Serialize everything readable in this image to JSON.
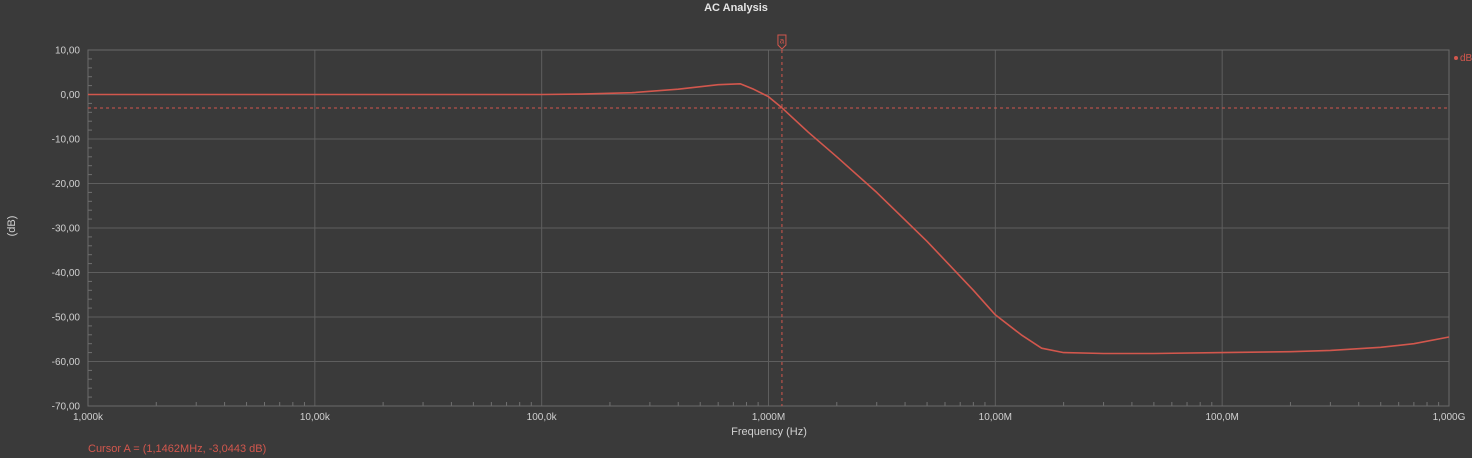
{
  "chart_data": {
    "type": "line",
    "title": "AC Analysis",
    "xlabel": "Frequency (Hz)",
    "ylabel": "(dB)",
    "xscale": "log",
    "xlim": [
      1000,
      1000000000
    ],
    "ylim": [
      -70,
      10
    ],
    "grid": true,
    "x_tick_labels": [
      "1,000k",
      "10,00k",
      "100,0k",
      "1,000M",
      "10,00M",
      "100,0M",
      "1,000G"
    ],
    "y_tick_labels": [
      "10,00",
      "0,00",
      "-10,00",
      "-20,00",
      "-30,00",
      "-40,00",
      "-50,00",
      "-60,00",
      "-70,00"
    ],
    "y_ticks": [
      10,
      0,
      -10,
      -20,
      -30,
      -40,
      -50,
      -60,
      -70
    ],
    "series": [
      {
        "name": "dB",
        "color": "#d2574d",
        "x": [
          1000,
          10000,
          100000,
          150000,
          250000,
          400000,
          600000,
          750000,
          850000,
          1000000,
          1146200,
          1500000,
          2000000,
          3000000,
          5000000,
          8000000,
          10000000,
          13000000,
          16000000,
          20000000,
          30000000,
          50000000,
          100000000,
          200000000,
          300000000,
          500000000,
          700000000,
          1000000000
        ],
        "y": [
          0,
          0,
          0,
          0.1,
          0.4,
          1.2,
          2.2,
          2.4,
          1.3,
          -0.5,
          -3.0,
          -8.5,
          -14,
          -22,
          -33,
          -44,
          -49.5,
          -54,
          -57,
          -58,
          -58.2,
          -58.2,
          -58,
          -57.8,
          -57.5,
          -56.8,
          -56,
          -54.5
        ]
      }
    ],
    "cursor": {
      "label": "a",
      "x": 1146200,
      "y": -3.0443,
      "readout": "Cursor A = (1,1462MHz, -3,0443 dB)"
    },
    "legend": {
      "placement": "right",
      "entries": [
        "dB"
      ]
    }
  }
}
